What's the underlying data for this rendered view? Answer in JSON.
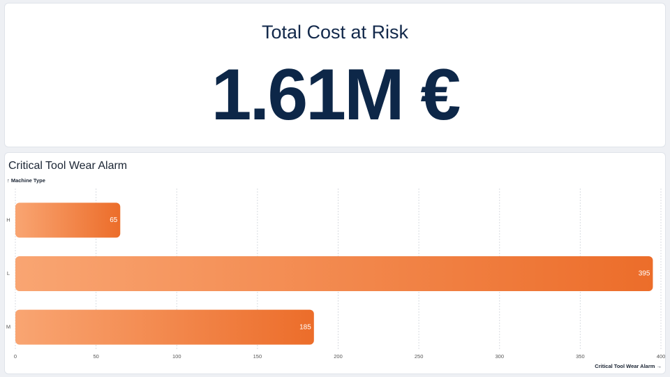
{
  "kpi": {
    "title": "Total Cost at Risk",
    "value": "1.61M €"
  },
  "chart_data": {
    "type": "bar",
    "orientation": "horizontal",
    "title": "Critical Tool Wear Alarm",
    "y_label": "↑ Machine Type",
    "x_label": "Critical Tool Wear Alarm →",
    "categories": [
      "H",
      "L",
      "M"
    ],
    "values": [
      65,
      395,
      185
    ],
    "color": "#ec6d2a",
    "xlim": [
      0,
      400
    ],
    "xticks": [
      0,
      50,
      100,
      150,
      200,
      250,
      300,
      350,
      400
    ],
    "grid": true
  }
}
